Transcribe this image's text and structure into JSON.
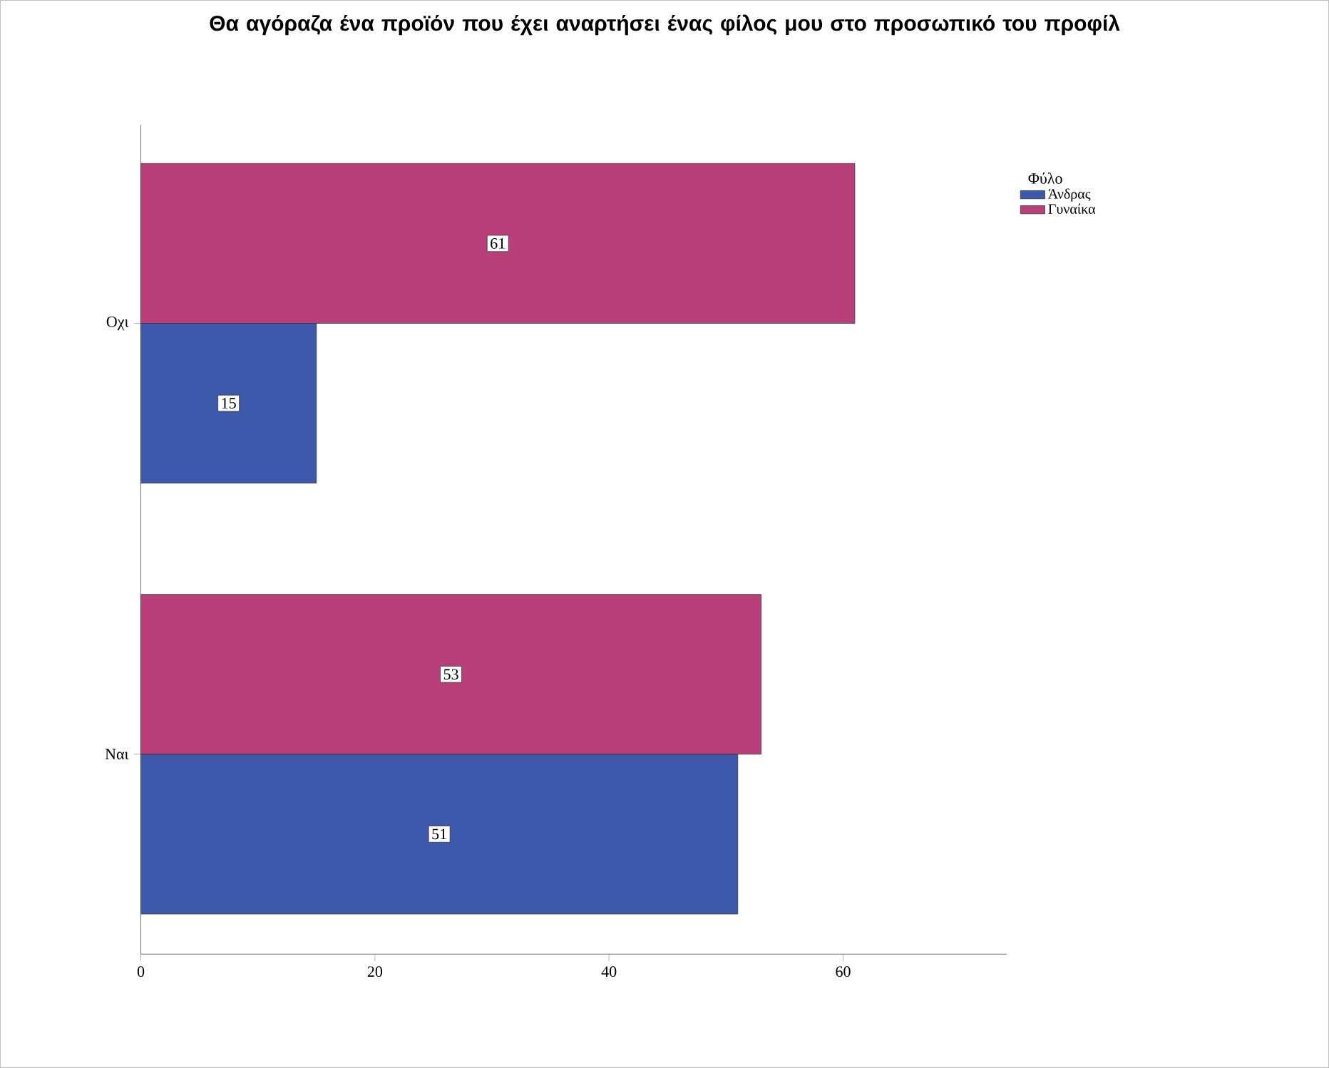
{
  "chart_data": {
    "type": "bar",
    "orientation": "horizontal",
    "title": "Θα αγόραζα ένα προϊόν που έχει αναρτήσει ένας φίλος μου στο προσωπικό του προφίλ",
    "categories": [
      "Οχι",
      "Ναι"
    ],
    "series": [
      {
        "name": "Άνδρας",
        "color": "#3e58ac",
        "values": [
          15,
          51
        ]
      },
      {
        "name": "Γυναίκα",
        "color": "#b93f7a",
        "values": [
          61,
          53
        ]
      }
    ],
    "xlim": [
      0,
      74
    ],
    "xticks": [
      0,
      20,
      40,
      60
    ],
    "legend_title": "Φύλο",
    "legend": "top right",
    "data_labels": true,
    "grid": false
  }
}
